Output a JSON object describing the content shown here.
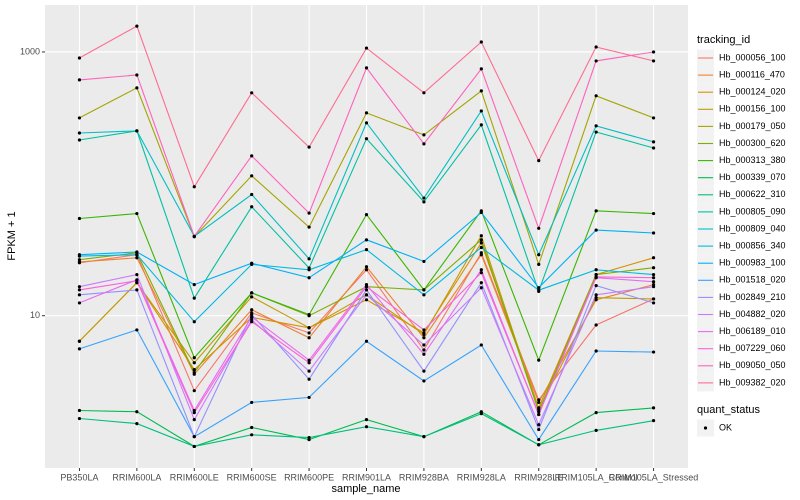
{
  "chart_data": {
    "type": "line",
    "x_label": "sample_name",
    "y_label": "FPKM + 1",
    "categories": [
      "PB350LA",
      "RRIM600LA",
      "RRIM600LE",
      "RRIM600SE",
      "RRIM600PE",
      "RRIM901LA",
      "RRIM928BA",
      "RRIM928LA",
      "RRIM928LE",
      "RRIM105LA_Control",
      "RRIM105LA_Stressed"
    ],
    "log_scale": true,
    "grid": true,
    "ylim": [
      0.7,
      2270
    ],
    "yticks": [
      10,
      1000
    ],
    "legend": "right",
    "legend_title": "tracking_id",
    "point_legend_title": "quant_status",
    "point_legend_labels": [
      "OK"
    ],
    "point_color": "#000000",
    "series": [
      {
        "name": "Hb_000056_100",
        "color": "#F8766D",
        "values": [
          25.2,
          29.0,
          2.7,
          10.5,
          7.4,
          22.3,
          5.5,
          30.0,
          2.3,
          8.5,
          13.4
        ]
      },
      {
        "name": "Hb_000116_470",
        "color": "#EA8331",
        "values": [
          25.6,
          27.5,
          3.6,
          11.1,
          6.8,
          23.5,
          6.8,
          29.0,
          2.2,
          13.2,
          17.2
        ]
      },
      {
        "name": "Hb_000124_020",
        "color": "#D89000",
        "values": [
          6.4,
          17.8,
          3.9,
          9.7,
          8.1,
          13.2,
          7.4,
          35.7,
          2.0,
          20.5,
          27.5
        ]
      },
      {
        "name": "Hb_000156_100",
        "color": "#C09B00",
        "values": [
          6.4,
          17.8,
          4.4,
          13.9,
          8.1,
          14.4,
          7.2,
          40.4,
          1.94,
          13.7,
          13.4
        ]
      },
      {
        "name": "Hb_000179_050",
        "color": "#A3A500",
        "values": [
          316,
          534,
          39.7,
          115,
          47,
          345,
          235,
          507,
          24.5,
          465,
          316
        ]
      },
      {
        "name": "Hb_000300_620",
        "color": "#7CAE00",
        "values": [
          26.6,
          30.0,
          3.7,
          14.9,
          10,
          16.6,
          15.7,
          37.6,
          1.87,
          20.5,
          23.1
        ]
      },
      {
        "name": "Hb_000313_380",
        "color": "#39B600",
        "values": [
          54.6,
          59.5,
          4.8,
          14.9,
          10.2,
          58.4,
          15.7,
          62.4,
          4.6,
          62.4,
          59.5
        ]
      },
      {
        "name": "Hb_000339_070",
        "color": "#00BB4E",
        "values": [
          1.91,
          1.87,
          1.02,
          1.42,
          1.15,
          1.63,
          1.21,
          1.87,
          1.05,
          1.84,
          2.0
        ]
      },
      {
        "name": "Hb_000622_310",
        "color": "#00BF7D",
        "values": [
          1.66,
          1.52,
          1.02,
          1.25,
          1.19,
          1.44,
          1.21,
          1.81,
          1.05,
          1.35,
          1.6
        ]
      },
      {
        "name": "Hb_000805_090",
        "color": "#00C1A3",
        "values": [
          215,
          252,
          13.6,
          67,
          23,
          220,
          73,
          280,
          15.3,
          247,
          187
        ]
      },
      {
        "name": "Hb_000809_040",
        "color": "#00BFC4",
        "values": [
          243,
          252,
          40,
          83,
          27,
          290,
          78,
          357,
          29,
          275,
          208
        ]
      },
      {
        "name": "Hb_000856_340",
        "color": "#00BAE0",
        "values": [
          28.3,
          29,
          9.0,
          24.5,
          22.3,
          31.7,
          14.4,
          32.9,
          15.6,
          22.3,
          20.5
        ]
      },
      {
        "name": "Hb_000983_100",
        "color": "#00B0F6",
        "values": [
          29,
          30.4,
          17.2,
          25,
          19.4,
          37.6,
          25.8,
          60.6,
          16.3,
          44.6,
          42.4
        ]
      },
      {
        "name": "Hb_001518_020",
        "color": "#35A2FF",
        "values": [
          5.6,
          7.8,
          1.21,
          2.2,
          2.4,
          6.4,
          3.2,
          6.0,
          1.15,
          5.4,
          5.3
        ]
      },
      {
        "name": "Hb_002849_210",
        "color": "#9590FF",
        "values": [
          14.4,
          15.7,
          1.21,
          10.2,
          3.3,
          15.7,
          3.8,
          17.8,
          1.37,
          16.9,
          12.5
        ]
      },
      {
        "name": "Hb_004882_020",
        "color": "#C77CFF",
        "values": [
          16.6,
          20.5,
          1.63,
          9.3,
          3.8,
          14.4,
          6.0,
          16.3,
          1.49,
          14.4,
          16.6
        ]
      },
      {
        "name": "Hb_006189_010",
        "color": "#E76BF3",
        "values": [
          12.5,
          18.7,
          1.91,
          9.8,
          4.6,
          17.2,
          5.1,
          22.3,
          1.78,
          19.4,
          18.1
        ]
      },
      {
        "name": "Hb_007229_060",
        "color": "#FA62DB",
        "values": [
          15.7,
          18.4,
          1.84,
          9.0,
          4.4,
          16.6,
          7.8,
          21.2,
          1.78,
          19.7,
          19.4
        ]
      },
      {
        "name": "Hb_009050_050",
        "color": "#FF62BC",
        "values": [
          614,
          669,
          40,
          163,
          60,
          757,
          201,
          744,
          46,
          855,
          1000
        ]
      },
      {
        "name": "Hb_009382_020",
        "color": "#FF6C91",
        "values": [
          900,
          1570,
          95,
          490,
          190,
          1070,
          490,
          1190,
          150,
          1090,
          855
        ]
      }
    ]
  }
}
